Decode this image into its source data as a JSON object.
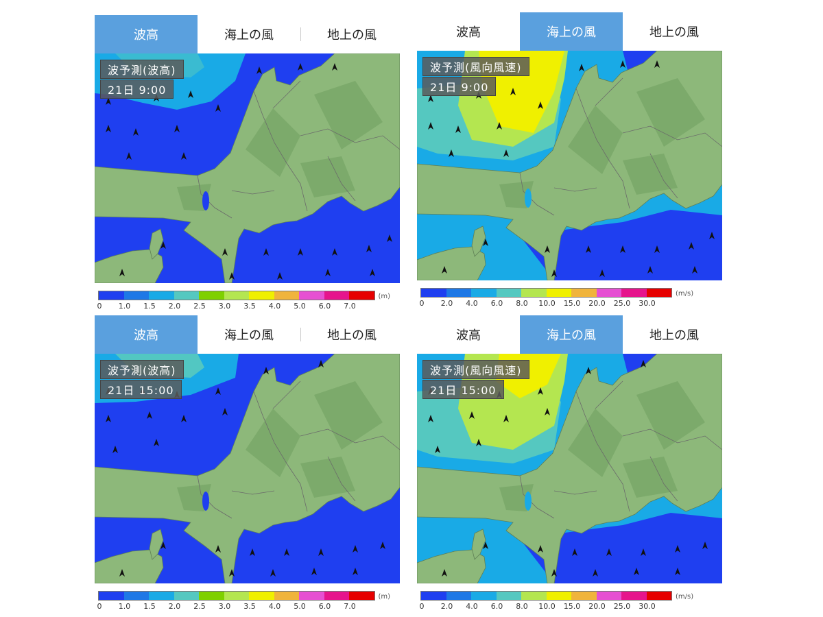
{
  "panels": [
    {
      "id": "tl",
      "tabs": [
        {
          "label": "波高",
          "active": true
        },
        {
          "label": "海上の風",
          "active": false
        },
        {
          "label": "地上の風",
          "active": false
        }
      ],
      "map_title": "波予測(波高)",
      "map_time": "21日 9:00",
      "legend_type": "wave"
    },
    {
      "id": "tr",
      "tabs": [
        {
          "label": "波高",
          "active": false
        },
        {
          "label": "海上の風",
          "active": true
        },
        {
          "label": "地上の風",
          "active": false
        }
      ],
      "map_title": "波予測(風向風速)",
      "map_time": "21日 9:00",
      "legend_type": "wind"
    },
    {
      "id": "bl",
      "tabs": [
        {
          "label": "波高",
          "active": true
        },
        {
          "label": "海上の風",
          "active": false
        },
        {
          "label": "地上の風",
          "active": false
        }
      ],
      "map_title": "波予測(波高)",
      "map_time": "21日 15:00",
      "legend_type": "wave"
    },
    {
      "id": "br",
      "tabs": [
        {
          "label": "波高",
          "active": false
        },
        {
          "label": "海上の風",
          "active": true
        },
        {
          "label": "地上の風",
          "active": false
        }
      ],
      "map_title": "波予測(風向風速)",
      "map_time": "21日 15:00",
      "legend_type": "wind"
    }
  ],
  "legends": {
    "wave": {
      "unit": "(m)",
      "ticks": [
        "0",
        "1.0",
        "1.5",
        "2.0",
        "2.5",
        "3.0",
        "3.5",
        "4.0",
        "5.0",
        "6.0",
        "7.0"
      ],
      "colors": [
        "#1f3ff0",
        "#1e78e6",
        "#19aae6",
        "#55c8c0",
        "#7fd000",
        "#b4e650",
        "#f0f000",
        "#f0b43c",
        "#e650d2",
        "#e6148c",
        "#e60000"
      ]
    },
    "wind": {
      "unit": "(m/s)",
      "ticks": [
        "0",
        "2.0",
        "4.0",
        "6.0",
        "8.0",
        "10.0",
        "15.0",
        "20.0",
        "25.0",
        "30.0"
      ],
      "colors": [
        "#1f3ff0",
        "#1e78e6",
        "#19aae6",
        "#55c8c0",
        "#b4e650",
        "#f0f000",
        "#f0b43c",
        "#e650d2",
        "#e6148c",
        "#e60000"
      ]
    }
  },
  "colors": {
    "tab_active": "#5aa0de",
    "sea_deep": "#1f3ff0",
    "sea_mid": "#1e78e6",
    "sea_light": "#19aae6",
    "sea_teal": "#55c8c0",
    "yellow_green": "#b4e650",
    "yellow": "#f0f000",
    "land": "#8db87a",
    "mountain": "#6f9f5f"
  }
}
